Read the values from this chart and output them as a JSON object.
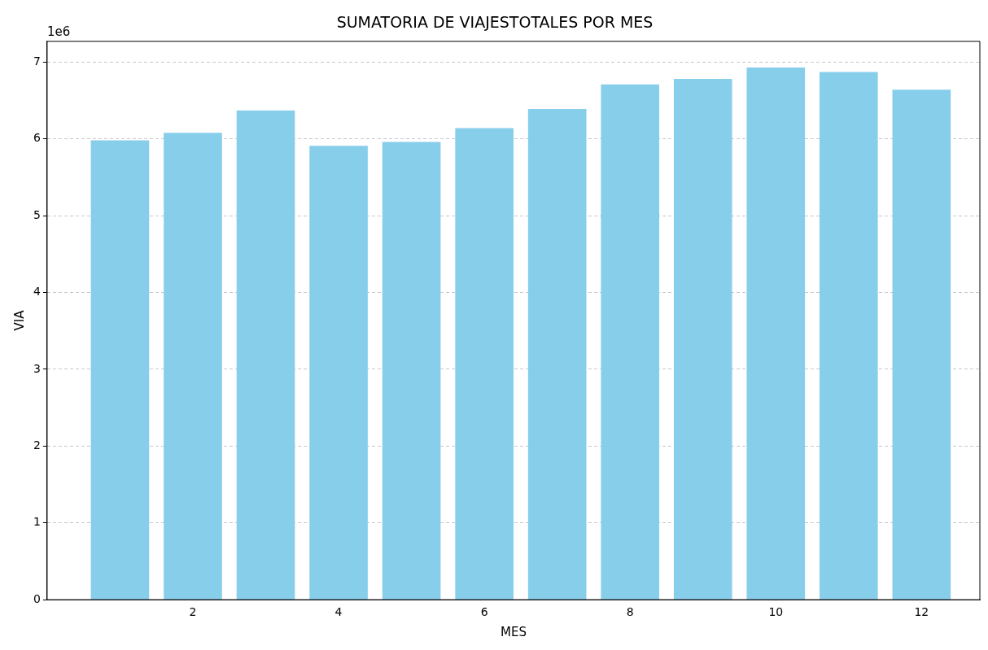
{
  "chart_data": {
    "type": "bar",
    "title": "SUMATORIA DE VIAJESTOTALES POR MES",
    "xlabel": "MES",
    "ylabel": "VIA",
    "x": [
      1,
      2,
      3,
      4,
      5,
      6,
      7,
      8,
      9,
      10,
      11,
      12
    ],
    "values": [
      5.98,
      6.08,
      6.37,
      5.91,
      5.96,
      6.14,
      6.39,
      6.71,
      6.78,
      6.93,
      6.87,
      6.64
    ],
    "color": "#87ceeb",
    "xlim": [
      0,
      12.8
    ],
    "xticks": [
      2,
      4,
      6,
      8,
      10,
      12
    ],
    "ylim": [
      0,
      7.27
    ],
    "yticks": [
      0,
      1,
      2,
      3,
      4,
      5,
      6,
      7
    ],
    "grid": "y",
    "line_style": "dashed",
    "annotations": [
      "1e6"
    ]
  }
}
